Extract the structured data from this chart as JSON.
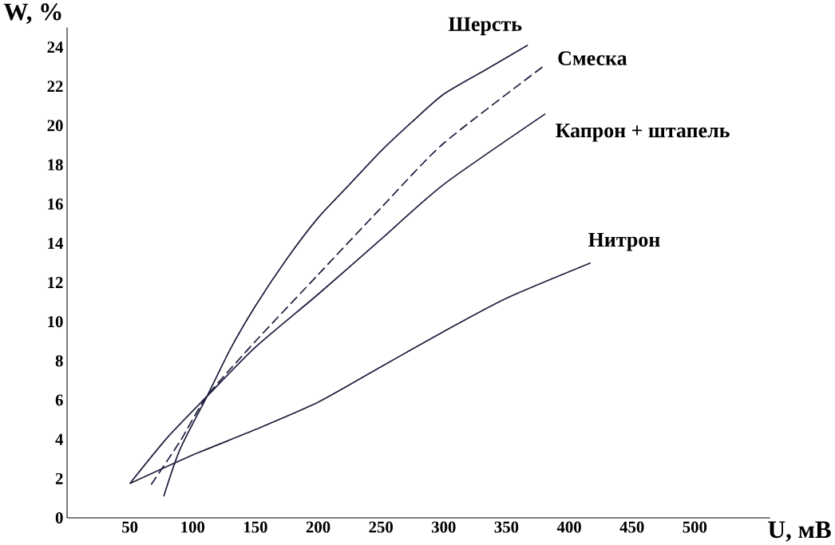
{
  "chart_data": {
    "type": "line",
    "xlabel": "U, мВ",
    "ylabel": "W, %",
    "xlim": [
      0,
      560
    ],
    "ylim": [
      0,
      25
    ],
    "xticks": [
      50,
      100,
      150,
      200,
      250,
      300,
      350,
      400,
      450,
      500
    ],
    "yticks": [
      {
        "value": 0,
        "label": "0"
      },
      2,
      4,
      6,
      8,
      10,
      12,
      14,
      16,
      18,
      20,
      22,
      24
    ],
    "marker": "none",
    "series": [
      {
        "color": "#1c1c3c",
        "line_style": "solid",
        "x": [
          77,
          90,
          111.5,
          130,
          150,
          175,
          200,
          225,
          250,
          275,
          300,
          335,
          367
        ],
        "values": [
          1.1,
          3.5,
          6.2,
          8.6,
          10.8,
          13.2,
          15.3,
          17.0,
          18.7,
          20.2,
          21.6,
          22.9,
          24.1
        ]
      },
      {
        "color": "#1c1c3c",
        "line_style": "dashed",
        "x": [
          67,
          90,
          111.5,
          150,
          200,
          250,
          300,
          381
        ],
        "values": [
          1.7,
          3.9,
          6.2,
          9.0,
          12.4,
          15.8,
          19.1,
          23.1
        ]
      },
      {
        "color": "#1c1c3c",
        "line_style": "solid",
        "x": [
          50,
          80,
          111.5,
          150,
          200,
          250,
          300,
          381
        ],
        "values": [
          1.75,
          4.1,
          6.2,
          8.7,
          11.4,
          14.2,
          17.0,
          20.6
        ]
      },
      {
        "color": "#1c1c3c",
        "line_style": "solid",
        "x": [
          50,
          100,
          150,
          200,
          250,
          300,
          350,
          417
        ],
        "values": [
          1.75,
          3.2,
          4.5,
          5.9,
          7.7,
          9.5,
          11.2,
          13.0
        ]
      }
    ],
    "annotations": [
      {
        "text": "Шерсть",
        "x": 367,
        "y": 24.1
      },
      {
        "text": "Смеска",
        "x": 381,
        "y": 23.1
      },
      {
        "text": "Капрон + штапель",
        "x": 381,
        "y": 20.6
      },
      {
        "text": "Нитрон",
        "x": 417,
        "y": 13.0
      }
    ]
  }
}
